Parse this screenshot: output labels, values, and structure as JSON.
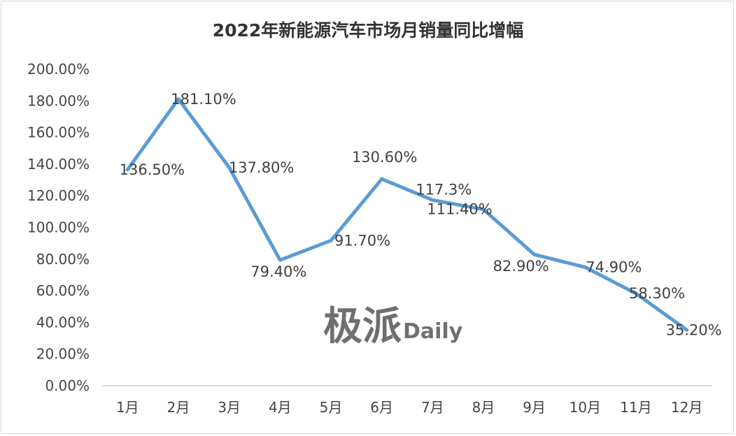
{
  "chart_data": {
    "type": "line",
    "title": "2022年新能源汽车市场月销量同比增幅",
    "categories": [
      "1月",
      "2月",
      "3月",
      "4月",
      "5月",
      "6月",
      "7月",
      "8月",
      "9月",
      "10月",
      "11月",
      "12月"
    ],
    "series": [
      {
        "values": [
          136.5,
          181.1,
          137.8,
          79.4,
          91.7,
          130.6,
          117.3,
          111.4,
          82.9,
          74.9,
          58.3,
          35.2
        ],
        "labels": [
          "136.50%",
          "181.10%",
          "137.80%",
          "79.40%",
          "91.70%",
          "130.60%",
          "117.3%",
          "111.40%",
          "82.90%",
          "74.90%",
          "58.30%",
          "35.20%"
        ],
        "color": "#5b9bd5"
      }
    ],
    "ylim": [
      0,
      200
    ],
    "yticks": [
      "0.00%",
      "20.00%",
      "40.00%",
      "60.00%",
      "80.00%",
      "100.00%",
      "120.00%",
      "140.00%",
      "160.00%",
      "180.00%",
      "200.00%"
    ],
    "grid": false,
    "legend": "none"
  },
  "watermark": {
    "text": "极派",
    "suffix": "Daily"
  }
}
